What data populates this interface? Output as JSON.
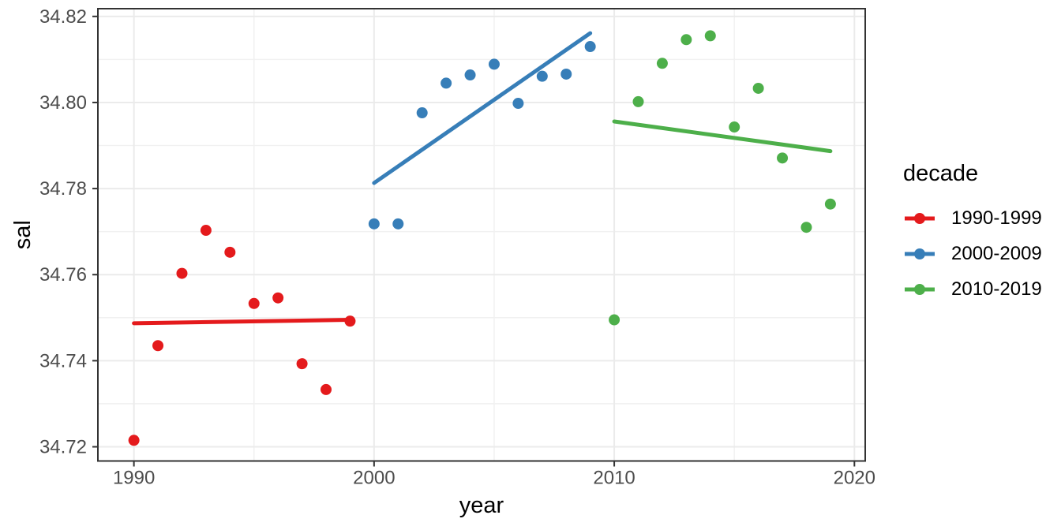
{
  "figure": {
    "x_axis_title": "year",
    "y_axis_title": "sal"
  },
  "legend": {
    "title": "decade",
    "position": "right",
    "entries": [
      {
        "label": "1990-1999",
        "color": "#E41A1C"
      },
      {
        "label": "2000-2009",
        "color": "#377EB8"
      },
      {
        "label": "2010-2019",
        "color": "#4DAF4A"
      }
    ]
  },
  "colors": {
    "background": "#FFFFFF",
    "grid_major": "#EBEBEB",
    "grid_minor": "#F1F1F1",
    "panel_border": "#333333",
    "tick_mark": "#333333",
    "tick_label": "#4D4D4D",
    "axis_title": "#000000",
    "red": "#E41A1C",
    "blue": "#377EB8",
    "green": "#4DAF4A"
  },
  "chart_data": {
    "type": "scatter",
    "title": "",
    "xlabel": "year",
    "ylabel": "sal",
    "grid": true,
    "legend_position": "right",
    "x_range": [
      1988.5,
      2020.45
    ],
    "y_range": [
      34.7167,
      34.8218
    ],
    "x_ticks": [
      {
        "value": 1990,
        "label": "1990"
      },
      {
        "value": 2000,
        "label": "2000"
      },
      {
        "value": 2010,
        "label": "2010"
      },
      {
        "value": 2020,
        "label": "2020"
      }
    ],
    "x_minor_ticks": [
      1995,
      2005,
      2015
    ],
    "y_ticks": [
      {
        "value": 34.72,
        "label": "34.72"
      },
      {
        "value": 34.74,
        "label": "34.74"
      },
      {
        "value": 34.76,
        "label": "34.76"
      },
      {
        "value": 34.78,
        "label": "34.78"
      },
      {
        "value": 34.8,
        "label": "34.80"
      },
      {
        "value": 34.82,
        "label": "34.82"
      }
    ],
    "y_minor_ticks": [
      34.73,
      34.75,
      34.77,
      34.79,
      34.81
    ],
    "series": [
      {
        "name": "1990-1999",
        "color": "#E41A1C",
        "points": [
          [
            1990,
            34.7215
          ],
          [
            1991,
            34.7435
          ],
          [
            1992,
            34.7603
          ],
          [
            1993,
            34.7703
          ],
          [
            1994,
            34.7652
          ],
          [
            1995,
            34.7533
          ],
          [
            1996,
            34.7546
          ],
          [
            1997,
            34.7393
          ],
          [
            1998,
            34.7333
          ],
          [
            1999,
            34.7492
          ]
        ],
        "trend": [
          [
            1990,
            34.7487
          ],
          [
            1999,
            34.7495
          ]
        ]
      },
      {
        "name": "2000-2009",
        "color": "#377EB8",
        "points": [
          [
            2000,
            34.7718
          ],
          [
            2001,
            34.7718
          ],
          [
            2002,
            34.7976
          ],
          [
            2003,
            34.8045
          ],
          [
            2004,
            34.8064
          ],
          [
            2005,
            34.8089
          ],
          [
            2006,
            34.7998
          ],
          [
            2007,
            34.8061
          ],
          [
            2008,
            34.8066
          ],
          [
            2009,
            34.813
          ]
        ],
        "trend": [
          [
            2000,
            34.7813
          ],
          [
            2009,
            34.8161
          ]
        ]
      },
      {
        "name": "2010-2019",
        "color": "#4DAF4A",
        "points": [
          [
            2010,
            34.7495
          ],
          [
            2011,
            34.8002
          ],
          [
            2012,
            34.8091
          ],
          [
            2013,
            34.8146
          ],
          [
            2014,
            34.8155
          ],
          [
            2015,
            34.7943
          ],
          [
            2016,
            34.8033
          ],
          [
            2017,
            34.7871
          ],
          [
            2018,
            34.771
          ],
          [
            2019,
            34.7764
          ]
        ],
        "trend": [
          [
            2010,
            34.7956
          ],
          [
            2019,
            34.7887
          ]
        ]
      }
    ]
  }
}
